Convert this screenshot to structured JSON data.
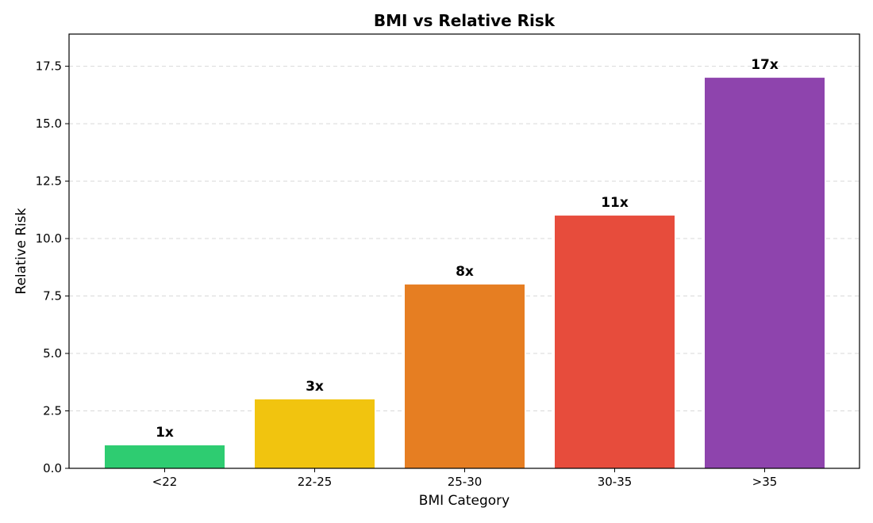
{
  "chart_data": {
    "type": "bar",
    "title": "BMI vs Relative Risk",
    "xlabel": "BMI Category",
    "ylabel": "Relative Risk",
    "categories": [
      "<22",
      "22-25",
      "25-30",
      "30-35",
      ">35"
    ],
    "values": [
      1,
      3,
      8,
      11,
      17
    ],
    "data_labels": [
      "1x",
      "3x",
      "8x",
      "11x",
      "17x"
    ],
    "colors": [
      "#2ecc71",
      "#f1c40f",
      "#e67e22",
      "#e74c3c",
      "#8e44ad"
    ],
    "ylim": [
      0,
      18.9
    ],
    "yticks": [
      0.0,
      2.5,
      5.0,
      7.5,
      10.0,
      12.5,
      15.0,
      17.5
    ],
    "ytick_labels": [
      "0.0",
      "2.5",
      "5.0",
      "7.5",
      "10.0",
      "12.5",
      "15.0",
      "17.5"
    ],
    "grid": "y-dashed",
    "legend": "none"
  }
}
